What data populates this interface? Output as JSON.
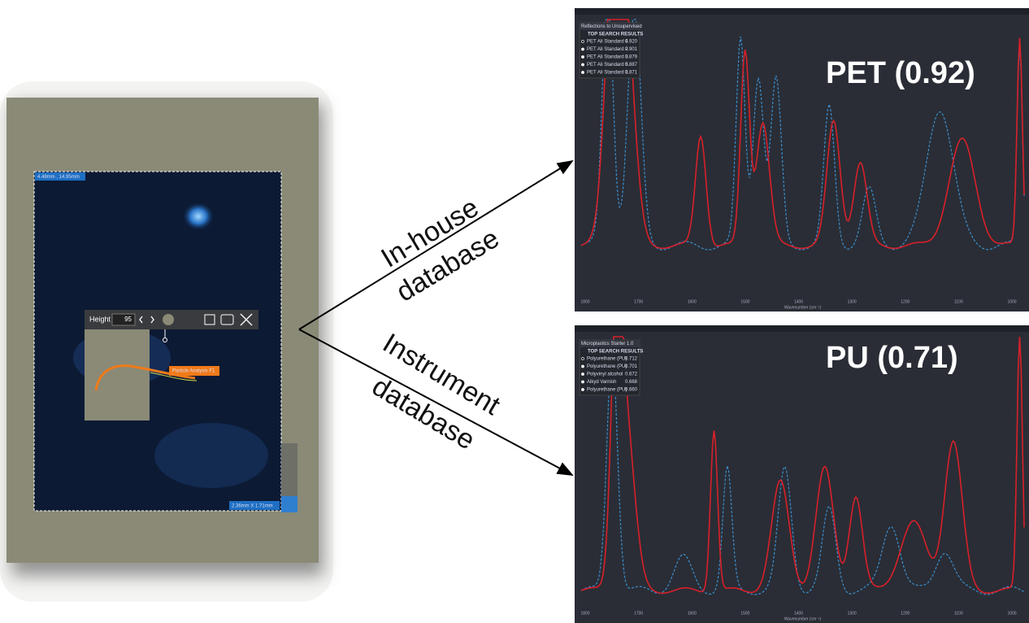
{
  "microscope": {
    "coords": "4.48mm , 14.95mm",
    "size": "2.36mm X 1.71mm",
    "toolbar": {
      "height_label": "Height",
      "height_value": "95"
    },
    "particle_label": "Particle Analysis F1"
  },
  "routes": [
    {
      "line1": "In-house",
      "line2": "database"
    },
    {
      "line1": "Instrument",
      "line2": "database"
    }
  ],
  "panels": [
    {
      "dropdown": "Reflections to Unsupervised",
      "results_title": "TOP SEARCH RESULTS",
      "results": [
        {
          "name": "PET Ali Standard 4",
          "score": "0.920"
        },
        {
          "name": "PET Ali Standard 2",
          "score": "0.901"
        },
        {
          "name": "PET Ali Standard 3",
          "score": "0.879"
        },
        {
          "name": "PET Ali Standard 5",
          "score": "0.887"
        },
        {
          "name": "PET Ali Standard 1",
          "score": "0.871"
        }
      ],
      "match": "PET (0.92)",
      "x_ticks": [
        "1800",
        "1700",
        "1600",
        "1500",
        "1400",
        "1300",
        "1200",
        "1100",
        "1000"
      ],
      "x_axis_label": "Wavenumber (cm⁻¹)"
    },
    {
      "dropdown": "Microplastics Starter 1.0",
      "results_title": "TOP SEARCH RESULTS",
      "results": [
        {
          "name": "Polyurethane (PU)",
          "score": "0.712"
        },
        {
          "name": "Polyurethane (PU)",
          "score": "0.701"
        },
        {
          "name": "Polyvinyl alcohol",
          "score": "0.672"
        },
        {
          "name": "Alkyd Varnish",
          "score": "0.668"
        },
        {
          "name": "Polyurethane (PU)",
          "score": "0.660"
        }
      ],
      "match": "PU (0.71)",
      "x_ticks": [
        "1800",
        "1700",
        "1600",
        "1500",
        "1400",
        "1300",
        "1200",
        "1100",
        "1000"
      ],
      "x_axis_label": "Wavenumber (cm⁻¹)"
    }
  ]
}
